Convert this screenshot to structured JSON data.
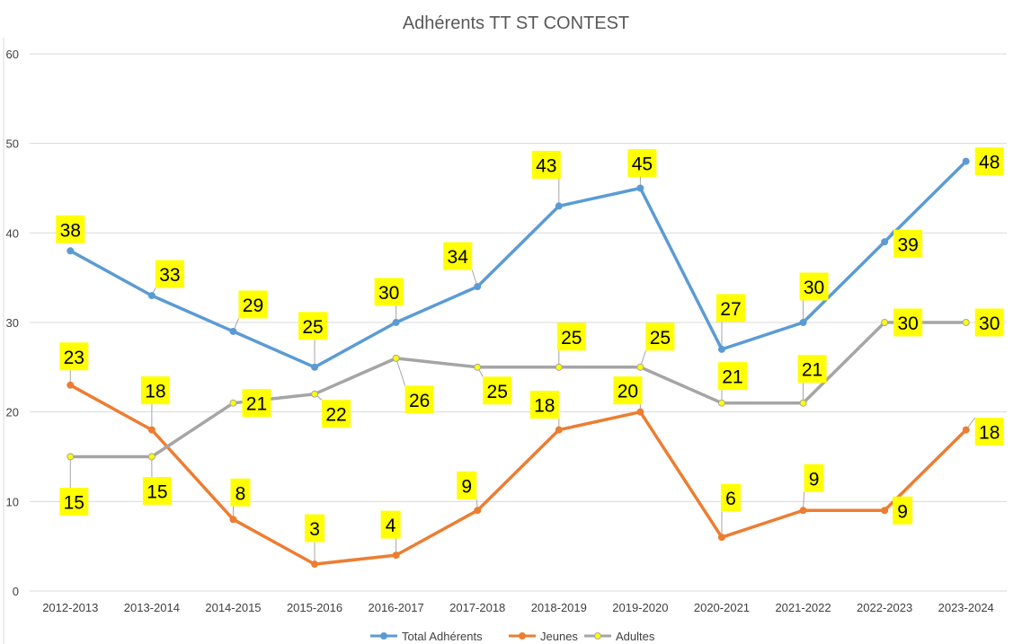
{
  "chart_data": {
    "type": "line",
    "title": "Adhérents TT ST CONTEST",
    "xlabel": "",
    "ylabel": "",
    "ylim": [
      0,
      60
    ],
    "yticks": [
      0,
      10,
      20,
      30,
      40,
      50,
      60
    ],
    "grid": true,
    "legend_position": "bottom",
    "categories": [
      "2012-2013",
      "2013-2014",
      "2014-2015",
      "2015-2016",
      "2016-2017",
      "2017-2018",
      "2018-2019",
      "2019-2020",
      "2020-2021",
      "2021-2022",
      "2022-2023",
      "2023-2024"
    ],
    "series": [
      {
        "name": "Total Adhérents",
        "color": "#5B9BD5",
        "marker_fill": "#5B9BD5",
        "values": [
          38,
          33,
          29,
          25,
          30,
          34,
          43,
          45,
          27,
          30,
          39,
          48
        ]
      },
      {
        "name": "Jeunes",
        "color": "#ED7D31",
        "marker_fill": "#ED7D31",
        "values": [
          23,
          18,
          8,
          3,
          4,
          9,
          18,
          20,
          6,
          9,
          9,
          18
        ]
      },
      {
        "name": "Adultes",
        "color": "#A5A5A5",
        "marker_fill": "#FFFF00",
        "values": [
          15,
          15,
          21,
          22,
          26,
          25,
          25,
          25,
          21,
          21,
          30,
          30
        ]
      }
    ],
    "data_label_background": "#FFFF00"
  }
}
